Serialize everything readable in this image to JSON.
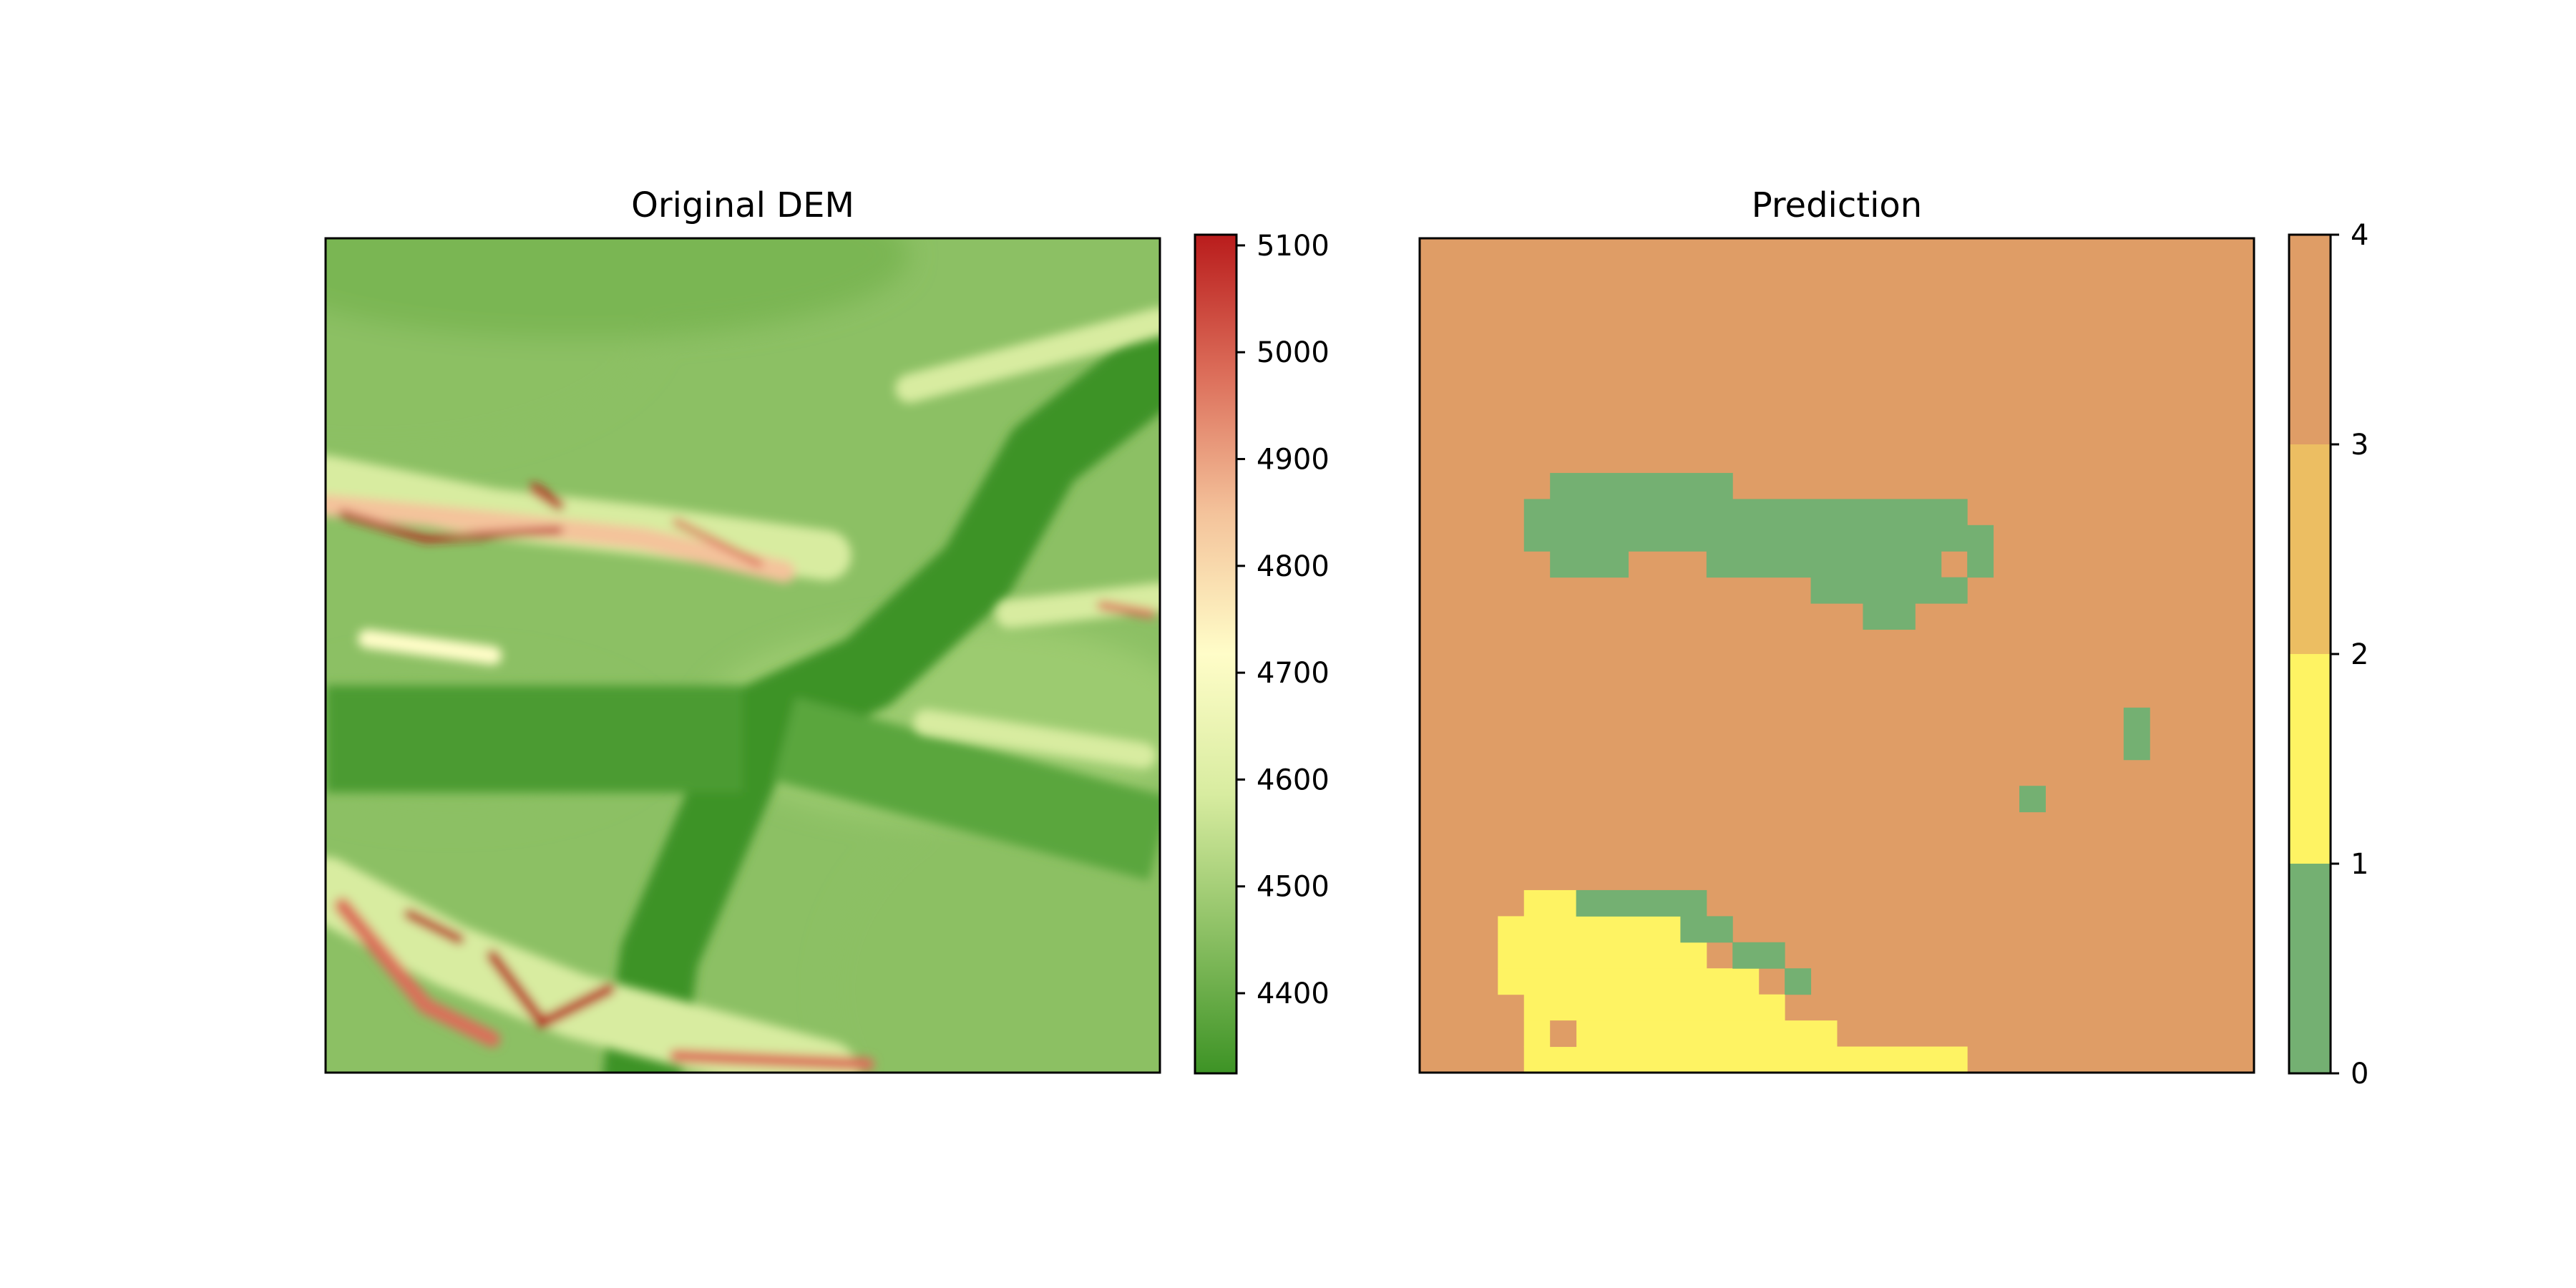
{
  "chart_data": [
    {
      "type": "heatmap",
      "title": "Original DEM",
      "xlabel": "",
      "ylabel": "",
      "colorbar": {
        "colormap": "green-yellow-red",
        "range": [
          4325,
          5110
        ],
        "ticks": [
          4400,
          4500,
          4600,
          4700,
          4800,
          4900,
          5000,
          5100
        ],
        "tick_labels": [
          "4400",
          "4500",
          "4600",
          "4700",
          "4800",
          "4900",
          "5000",
          "5100"
        ],
        "colors": [
          "#3d9325",
          "#8cc064",
          "#d8eca0",
          "#fffdc8",
          "#f4c39b",
          "#dc6e5a",
          "#b91c1c"
        ]
      },
      "description": "terrain elevation map with a low central valley running from the upper right to the lower left and high ridges on the left and bottom"
    },
    {
      "type": "heatmap",
      "title": "Prediction",
      "xlabel": "",
      "ylabel": "",
      "grid_size": [
        32,
        32
      ],
      "colorbar": {
        "range": [
          0,
          4
        ],
        "ticks": [
          0,
          1,
          2,
          3,
          4
        ],
        "tick_labels": [
          "0",
          "1",
          "2",
          "3",
          "4"
        ],
        "class_colors": [
          "#74b072",
          "#fef363",
          "#ecbe62",
          "#df9d66"
        ]
      },
      "background_class": 3,
      "regions": [
        {
          "class": 0,
          "rows": [
            [
              9,
              [
                5,
                11
              ]
            ],
            [
              10,
              [
                4,
                20
              ]
            ],
            [
              11,
              [
                4,
                21
              ]
            ],
            [
              12,
              [
                5,
                7
              ],
              [
                11,
                19
              ],
              [
                21,
                21
              ]
            ],
            [
              13,
              [
                15,
                20
              ]
            ],
            [
              14,
              [
                17,
                18
              ]
            ]
          ]
        },
        {
          "class": 0,
          "rows": [
            [
              18,
              [
                27,
                27
              ]
            ],
            [
              19,
              [
                27,
                27
              ]
            ],
            [
              21,
              [
                23,
                23
              ]
            ]
          ]
        },
        {
          "class": 1,
          "rows": [
            [
              25,
              [
                4,
                5
              ]
            ],
            [
              26,
              [
                3,
                9
              ]
            ],
            [
              27,
              [
                3,
                10
              ]
            ],
            [
              28,
              [
                3,
                12
              ]
            ],
            [
              29,
              [
                4,
                13
              ]
            ],
            [
              30,
              [
                4,
                15
              ]
            ],
            [
              31,
              [
                4,
                20
              ]
            ]
          ]
        },
        {
          "class": 0,
          "rows": [
            [
              25,
              [
                6,
                10
              ]
            ],
            [
              26,
              [
                10,
                11
              ]
            ],
            [
              27,
              [
                12,
                13
              ]
            ],
            [
              28,
              [
                14,
                14
              ]
            ]
          ]
        },
        {
          "class": 3,
          "rows": [
            [
              30,
              [
                5,
                5
              ]
            ]
          ]
        }
      ]
    }
  ]
}
